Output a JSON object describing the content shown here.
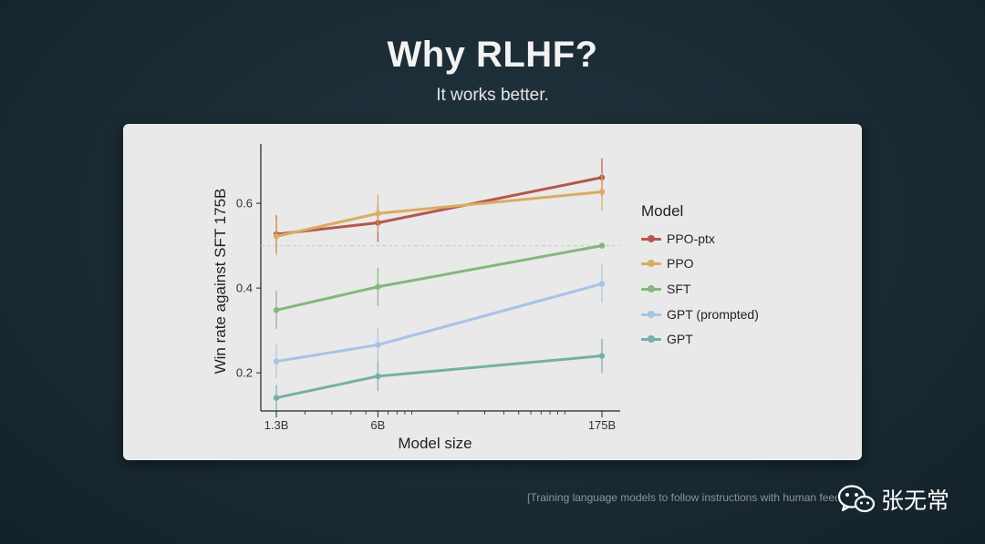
{
  "slide": {
    "title": "Why RLHF?",
    "subtitle": "It works better.",
    "citation": "[Training language models to follow instructions with human feedback",
    "watermark_text": "张无常"
  },
  "chart_data": {
    "type": "line",
    "title": "",
    "xlabel": "Model size",
    "ylabel": "Win rate against SFT 175B",
    "x_scale": "log",
    "x_tick_labels": [
      "1.3B",
      "6B",
      "175B"
    ],
    "y_ticks": [
      0.2,
      0.4,
      0.6
    ],
    "y_tick_labels": [
      "0.2",
      "0.4",
      "0.6"
    ],
    "ylim": [
      0.11,
      0.74
    ],
    "reference_line": 0.5,
    "legend_title": "Model",
    "legend_position": "right",
    "x": [
      "1.3B",
      "6B",
      "175B"
    ],
    "series": [
      {
        "name": "PPO-ptx",
        "color": "#b4574f",
        "values": [
          0.527,
          0.554,
          0.661
        ],
        "error": [
          0.045,
          0.045,
          0.045
        ]
      },
      {
        "name": "PPO",
        "color": "#d9ac62",
        "values": [
          0.522,
          0.576,
          0.627
        ],
        "error": [
          0.045,
          0.045,
          0.045
        ]
      },
      {
        "name": "SFT",
        "color": "#84b67d",
        "values": [
          0.348,
          0.403,
          0.5
        ],
        "error": [
          0.045,
          0.045,
          0.0
        ]
      },
      {
        "name": "GPT (prompted)",
        "color": "#a5c4e6",
        "values": [
          0.227,
          0.266,
          0.41
        ],
        "error": [
          0.04,
          0.04,
          0.045
        ]
      },
      {
        "name": "GPT",
        "color": "#74b0a6",
        "values": [
          0.141,
          0.192,
          0.24
        ],
        "error": [
          0.03,
          0.035,
          0.04
        ]
      }
    ]
  }
}
